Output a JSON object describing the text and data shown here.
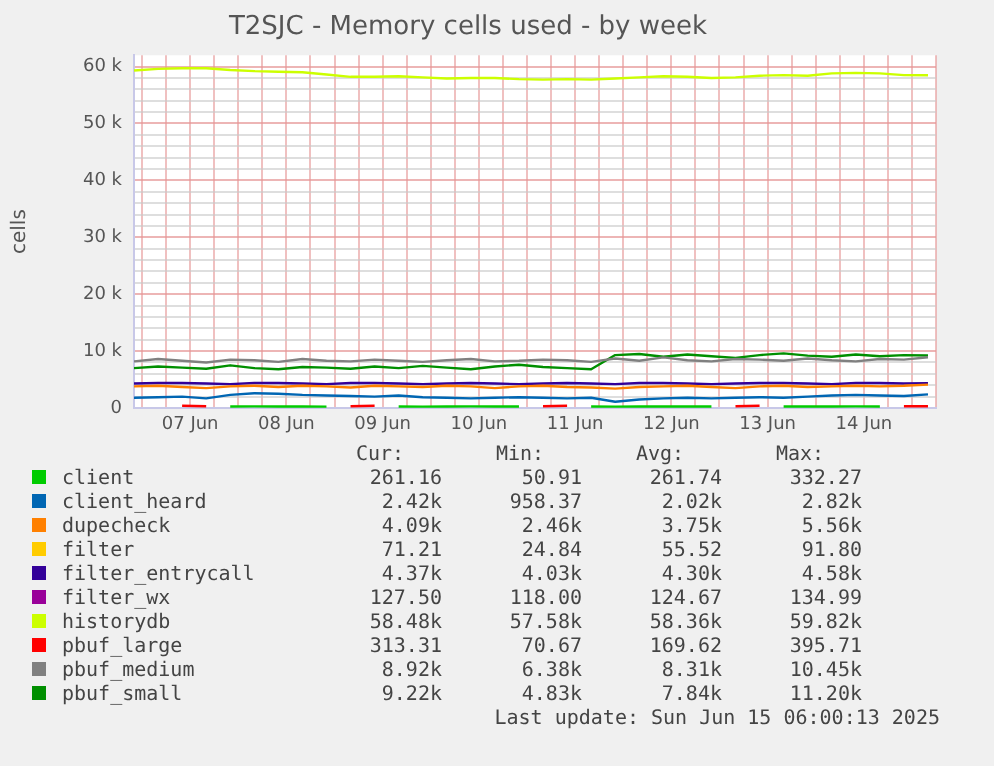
{
  "chart_data": {
    "type": "line",
    "title": "T2SJC - Memory cells used - by week",
    "ylabel": "cells",
    "x": [
      "2025-06-06T22:00",
      "2025-06-07T04:00",
      "2025-06-07T10:00",
      "2025-06-07T16:00",
      "2025-06-07T22:00",
      "2025-06-08T04:00",
      "2025-06-08T10:00",
      "2025-06-08T16:00",
      "2025-06-08T22:00",
      "2025-06-09T04:00",
      "2025-06-09T10:00",
      "2025-06-09T16:00",
      "2025-06-09T22:00",
      "2025-06-10T04:00",
      "2025-06-10T10:00",
      "2025-06-10T16:00",
      "2025-06-10T22:00",
      "2025-06-11T04:00",
      "2025-06-11T10:00",
      "2025-06-11T16:00",
      "2025-06-11T22:00",
      "2025-06-12T04:00",
      "2025-06-12T10:00",
      "2025-06-12T16:00",
      "2025-06-12T22:00",
      "2025-06-13T04:00",
      "2025-06-13T10:00",
      "2025-06-13T16:00",
      "2025-06-13T22:00",
      "2025-06-14T04:00",
      "2025-06-14T10:00",
      "2025-06-14T16:00",
      "2025-06-14T22:00",
      "2025-06-15T04:00"
    ],
    "xlim": [
      "2025-06-06T22:00",
      "2025-06-15T06:00"
    ],
    "xticks": [
      {
        "value": "2025-06-07T00:00",
        "label": null
      },
      {
        "value": "2025-06-07T06:00",
        "label": null
      },
      {
        "value": "2025-06-07T12:00",
        "label": "07 Jun"
      },
      {
        "value": "2025-06-07T18:00",
        "label": null
      },
      {
        "value": "2025-06-08T00:00",
        "label": null
      },
      {
        "value": "2025-06-08T06:00",
        "label": null
      },
      {
        "value": "2025-06-08T12:00",
        "label": "08 Jun"
      },
      {
        "value": "2025-06-08T18:00",
        "label": null
      },
      {
        "value": "2025-06-09T00:00",
        "label": null
      },
      {
        "value": "2025-06-09T06:00",
        "label": null
      },
      {
        "value": "2025-06-09T12:00",
        "label": "09 Jun"
      },
      {
        "value": "2025-06-09T18:00",
        "label": null
      },
      {
        "value": "2025-06-10T00:00",
        "label": null
      },
      {
        "value": "2025-06-10T06:00",
        "label": null
      },
      {
        "value": "2025-06-10T12:00",
        "label": "10 Jun"
      },
      {
        "value": "2025-06-10T18:00",
        "label": null
      },
      {
        "value": "2025-06-11T00:00",
        "label": null
      },
      {
        "value": "2025-06-11T06:00",
        "label": null
      },
      {
        "value": "2025-06-11T12:00",
        "label": "11 Jun"
      },
      {
        "value": "2025-06-11T18:00",
        "label": null
      },
      {
        "value": "2025-06-12T00:00",
        "label": null
      },
      {
        "value": "2025-06-12T06:00",
        "label": null
      },
      {
        "value": "2025-06-12T12:00",
        "label": "12 Jun"
      },
      {
        "value": "2025-06-12T18:00",
        "label": null
      },
      {
        "value": "2025-06-13T00:00",
        "label": null
      },
      {
        "value": "2025-06-13T06:00",
        "label": null
      },
      {
        "value": "2025-06-13T12:00",
        "label": "13 Jun"
      },
      {
        "value": "2025-06-13T18:00",
        "label": null
      },
      {
        "value": "2025-06-14T00:00",
        "label": null
      },
      {
        "value": "2025-06-14T06:00",
        "label": null
      },
      {
        "value": "2025-06-14T12:00",
        "label": "14 Jun"
      },
      {
        "value": "2025-06-14T18:00",
        "label": null
      },
      {
        "value": "2025-06-15T00:00",
        "label": null
      },
      {
        "value": "2025-06-15T06:00",
        "label": null
      }
    ],
    "ylim": [
      0,
      62000
    ],
    "yticks": [
      0,
      {
        "value": 2000,
        "label": null
      },
      {
        "value": 4000,
        "label": null
      },
      {
        "value": 6000,
        "label": null
      },
      {
        "value": 8000,
        "label": null
      },
      {
        "value": 10000,
        "label": "10 k"
      },
      {
        "value": 12000,
        "label": null
      },
      {
        "value": 14000,
        "label": null
      },
      {
        "value": 16000,
        "label": null
      },
      {
        "value": 18000,
        "label": null
      },
      {
        "value": 20000,
        "label": "20 k"
      },
      {
        "value": 22000,
        "label": null
      },
      {
        "value": 24000,
        "label": null
      },
      {
        "value": 26000,
        "label": null
      },
      {
        "value": 28000,
        "label": null
      },
      {
        "value": 30000,
        "label": "30 k"
      },
      {
        "value": 32000,
        "label": null
      },
      {
        "value": 34000,
        "label": null
      },
      {
        "value": 36000,
        "label": null
      },
      {
        "value": 38000,
        "label": null
      },
      {
        "value": 40000,
        "label": "40 k"
      },
      {
        "value": 42000,
        "label": null
      },
      {
        "value": 44000,
        "label": null
      },
      {
        "value": 46000,
        "label": null
      },
      {
        "value": 48000,
        "label": null
      },
      {
        "value": 50000,
        "label": "50 k"
      },
      {
        "value": 52000,
        "label": null
      },
      {
        "value": 54000,
        "label": null
      },
      {
        "value": 56000,
        "label": null
      },
      {
        "value": 58000,
        "label": null
      },
      {
        "value": 60000,
        "label": "60 k"
      }
    ],
    "grid": true,
    "legend": "bottom",
    "marker": "none",
    "line_style": "solid",
    "series": [
      {
        "name": "client",
        "color": "#00cc00",
        "values": [
          null,
          null,
          null,
          null,
          260,
          280,
          260,
          260,
          250,
          null,
          null,
          260,
          250,
          260,
          280,
          260,
          260,
          null,
          null,
          260,
          250,
          260,
          270,
          260,
          260,
          null,
          null,
          260,
          260,
          270,
          280,
          260,
          null,
          null
        ]
      },
      {
        "name": "client_heard",
        "color": "#0066b3",
        "values": [
          1800,
          1900,
          2000,
          1700,
          2300,
          2600,
          2500,
          2300,
          2200,
          2100,
          2000,
          2200,
          1900,
          1800,
          1700,
          1800,
          1900,
          1800,
          1700,
          1800,
          1100,
          1500,
          1700,
          1800,
          1700,
          1800,
          1900,
          1800,
          2000,
          2200,
          2300,
          2200,
          2100,
          2400
        ]
      },
      {
        "name": "dupecheck",
        "color": "#ff8000",
        "values": [
          3800,
          3900,
          3700,
          3500,
          3800,
          3900,
          3700,
          3900,
          3800,
          3600,
          3900,
          3800,
          3700,
          3900,
          3800,
          3500,
          3800,
          3900,
          3700,
          3600,
          3400,
          3700,
          3800,
          3900,
          3700,
          3500,
          3800,
          3900,
          3700,
          3800,
          3900,
          3800,
          3900,
          4100
        ]
      },
      {
        "name": "filter",
        "color": "#ffcc00",
        "values": [
          null,
          null,
          null,
          null,
          null,
          null,
          null,
          null,
          null,
          null,
          null,
          null,
          null,
          null,
          null,
          null,
          null,
          null,
          null,
          null,
          null,
          null,
          null,
          null,
          null,
          null,
          null,
          null,
          null,
          null,
          null,
          null,
          null,
          null
        ]
      },
      {
        "name": "filter_entrycall",
        "color": "#330099",
        "values": [
          4300,
          4400,
          4400,
          4300,
          4200,
          4400,
          4400,
          4300,
          4200,
          4400,
          4400,
          4300,
          4200,
          4300,
          4400,
          4300,
          4200,
          4300,
          4400,
          4300,
          4200,
          4400,
          4400,
          4300,
          4200,
          4300,
          4400,
          4400,
          4300,
          4200,
          4400,
          4400,
          4300,
          4370
        ]
      },
      {
        "name": "filter_wx",
        "color": "#990099",
        "values": [
          null,
          null,
          null,
          null,
          null,
          null,
          null,
          null,
          null,
          null,
          null,
          null,
          null,
          null,
          null,
          null,
          null,
          null,
          null,
          null,
          null,
          null,
          null,
          null,
          null,
          null,
          null,
          null,
          null,
          null,
          null,
          null,
          null,
          null
        ]
      },
      {
        "name": "historydb",
        "color": "#ccff00",
        "values": [
          59300,
          59600,
          59700,
          59700,
          59400,
          59200,
          59100,
          59000,
          58600,
          58200,
          58200,
          58300,
          58100,
          57900,
          58000,
          58000,
          57800,
          57700,
          57800,
          57700,
          57900,
          58100,
          58300,
          58200,
          58000,
          58100,
          58400,
          58500,
          58400,
          58800,
          58900,
          58800,
          58500,
          58480
        ]
      },
      {
        "name": "pbuf_large",
        "color": "#ff0000",
        "values": [
          null,
          null,
          400,
          300,
          null,
          null,
          null,
          null,
          null,
          300,
          400,
          null,
          null,
          null,
          null,
          null,
          null,
          300,
          400,
          null,
          null,
          null,
          null,
          null,
          null,
          300,
          400,
          null,
          null,
          null,
          null,
          null,
          300,
          300
        ]
      },
      {
        "name": "pbuf_medium",
        "color": "#808080",
        "values": [
          8200,
          8600,
          8300,
          8000,
          8500,
          8400,
          8100,
          8600,
          8300,
          8200,
          8500,
          8300,
          8100,
          8400,
          8600,
          8200,
          8300,
          8500,
          8400,
          8100,
          8700,
          8300,
          8900,
          8400,
          8200,
          8600,
          8500,
          8300,
          8700,
          8400,
          8200,
          8600,
          8500,
          8920
        ]
      },
      {
        "name": "pbuf_small",
        "color": "#008f00",
        "values": [
          7000,
          7300,
          7100,
          6900,
          7500,
          7000,
          6800,
          7200,
          7100,
          6900,
          7300,
          7000,
          7400,
          7100,
          6800,
          7300,
          7600,
          7200,
          7000,
          6800,
          9300,
          9500,
          9000,
          9400,
          9100,
          8800,
          9300,
          9600,
          9200,
          9000,
          9400,
          9100,
          9300,
          9220
        ]
      }
    ],
    "annotations": [
      "Cur:",
      "Min:",
      "Avg:",
      "Max:",
      "261.16",
      "50.91",
      "261.74",
      "332.27",
      "2.42k",
      "958.37",
      "2.02k",
      "2.82k",
      "4.09k",
      "2.46k",
      "3.75k",
      "5.56k",
      "71.21",
      "24.84",
      "55.52",
      "91.80",
      "4.37k",
      "4.03k",
      "4.30k",
      "4.58k",
      "127.50",
      "118.00",
      "124.67",
      "134.99",
      "58.48k",
      "57.58k",
      "58.36k",
      "59.82k",
      "313.31",
      "70.67",
      "169.62",
      "395.71",
      "8.92k",
      "6.38k",
      "8.31k",
      "10.45k",
      "9.22k",
      "4.83k",
      "7.84k",
      "11.20k",
      "Last update: Sun Jun 15 06:00:13 2025"
    ]
  }
}
